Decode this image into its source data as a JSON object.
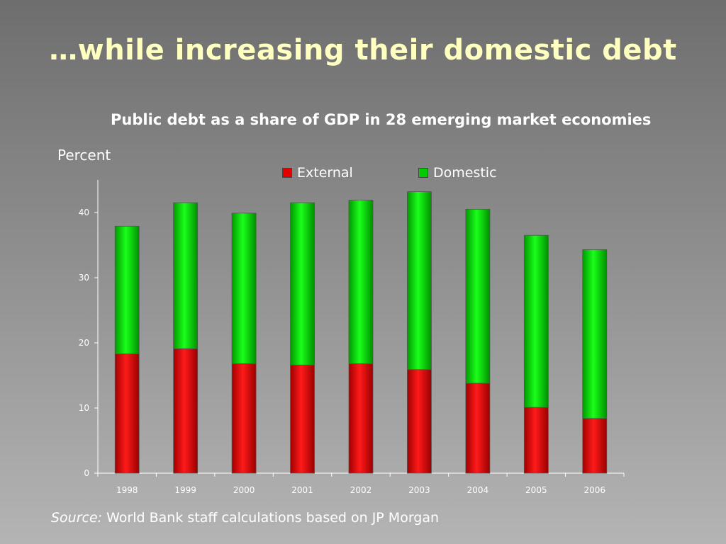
{
  "title": "…while increasing their domestic debt",
  "chart_data": {
    "type": "bar",
    "stacked": true,
    "title": "Public debt as a share of GDP in 28 emerging market economies",
    "ylabel": "Percent",
    "xlabel": "",
    "categories": [
      "1998",
      "1999",
      "2000",
      "2001",
      "2002",
      "2003",
      "2004",
      "2005",
      "2006"
    ],
    "series": [
      {
        "name": "External",
        "color": "#e00000",
        "values": [
          18.3,
          19.1,
          16.8,
          16.6,
          16.8,
          15.9,
          13.8,
          10.1,
          8.4
        ]
      },
      {
        "name": "Domestic",
        "color": "#00cc00",
        "values": [
          19.6,
          22.4,
          23.1,
          24.9,
          25.1,
          27.3,
          26.7,
          26.4,
          25.9
        ]
      }
    ],
    "ylim": [
      0,
      45
    ],
    "yticks": [
      0,
      10,
      20,
      30,
      40
    ],
    "grid": false,
    "legend_position": "top"
  },
  "source": {
    "label": "Source:",
    "text": "World Bank staff calculations based on JP Morgan"
  }
}
